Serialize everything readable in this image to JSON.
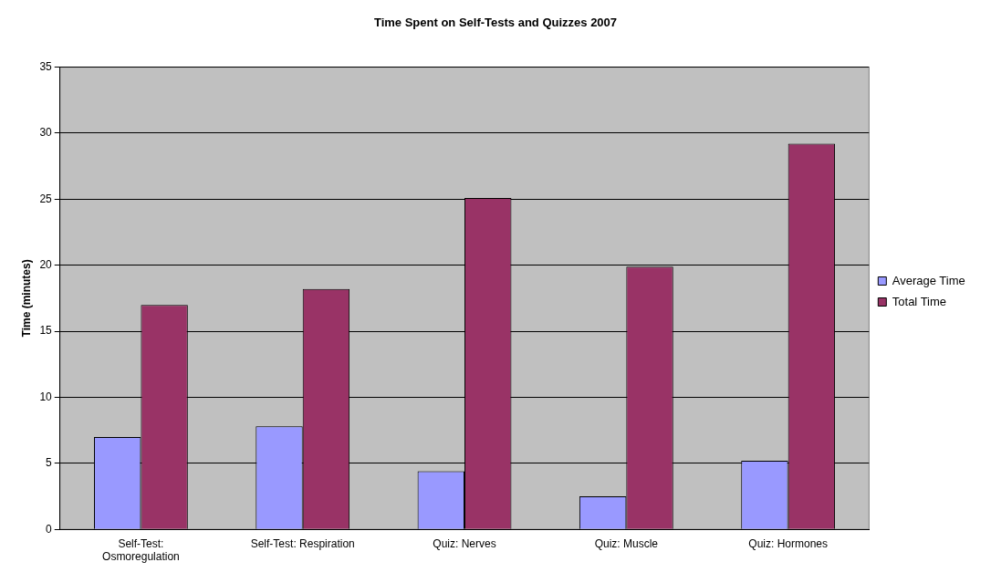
{
  "chart_data": {
    "type": "bar",
    "title": "Time Spent on Self-Tests and Quizzes 2007",
    "ylabel": "Time (minutes)",
    "categories": [
      "Self-Test: Osmoregulation",
      "Self-Test: Respiration",
      "Quiz: Nerves",
      "Quiz: Muscle",
      "Quiz: Hormones"
    ],
    "series": [
      {
        "name": "Average Time",
        "color": "#9999ff",
        "values": [
          7.0,
          7.8,
          4.4,
          2.5,
          5.2
        ]
      },
      {
        "name": "Total Time",
        "color": "#993366",
        "values": [
          17.0,
          18.2,
          25.1,
          19.9,
          29.2
        ]
      }
    ],
    "ylim": [
      0,
      35
    ],
    "yticks": [
      0,
      5,
      10,
      15,
      20,
      25,
      30,
      35
    ],
    "grid": "y",
    "legend": "right"
  }
}
